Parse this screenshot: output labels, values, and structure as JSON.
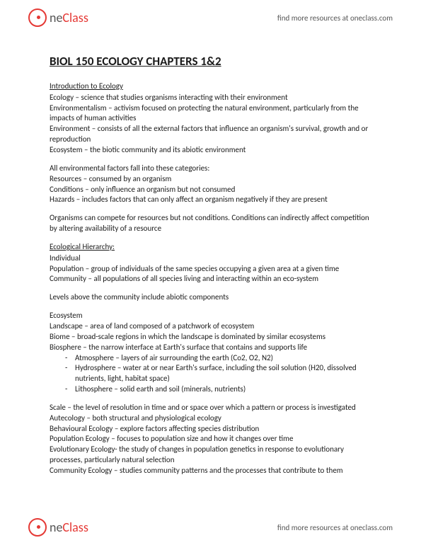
{
  "brand": {
    "logo_part1": "ne",
    "logo_part2": "Class",
    "header_link": "find more resources at oneclass.com",
    "footer_link": "find more resources at oneclass.com"
  },
  "doc": {
    "title": "BIOL 150 ECOLOGY CHAPTERS 1&2",
    "sections": [
      {
        "heading": "Introduction to Ecology",
        "lines": [
          "Ecology – science that studies organisms interacting with their environment",
          "Environmentalism – activism focused on protecting the natural environment, particularly from the impacts of human activities",
          "Environment – consists of all the external factors that influence an organism's survival, growth and or reproduction",
          "Ecosystem – the biotic community and its abiotic environment"
        ]
      },
      {
        "heading": "",
        "lines": [
          "All environmental factors fall into these categories:",
          "Resources – consumed by an organism",
          "Conditions – only influence an organism but not consumed",
          "Hazards – includes factors that can only affect an organism negatively if they are present"
        ]
      },
      {
        "heading": "",
        "lines": [
          "Organisms can compete for resources but not conditions. Conditions can indirectly affect competition by altering availability of a resource"
        ]
      },
      {
        "heading": "Ecological Hierarchy:",
        "lines": [
          "Individual",
          "Population – group of individuals of the same species occupying a given area at a given time",
          "Community – all populations of all species living and interacting within an eco-system"
        ]
      },
      {
        "heading": "",
        "lines": [
          "Levels above the community include abiotic components"
        ]
      },
      {
        "heading": "",
        "lines": [
          "Ecosystem",
          "Landscape – area of land composed of a patchwork of ecosystem",
          "Biome – broad-scale regions in which the landscape is dominated by similar ecosystems",
          "Biosphere – the narrow interface at Earth's surface that contains and supports life"
        ],
        "sublist": [
          "Atmosphere – layers of air surrounding the earth (Co2, O2, N2)",
          "Hydrosphere – water at or near Earth's surface, including the soil solution (H20, dissolved nutrients, light, habitat space)",
          "Lithosphere – solid earth and soil (minerals, nutrients)"
        ]
      },
      {
        "heading": "",
        "lines": [
          "Scale – the level of resolution in time and or space over which a pattern or process is investigated",
          "Autecology – both structural and physiological ecology",
          "Behavioural Ecology – explore factors affecting species distribution",
          "Population Ecology – focuses to population size and how it changes over time",
          "Evolutionary Ecology- the study of changes in population genetics in response to evolutionary processes, particularly natural selection",
          "Community Ecology – studies community patterns and the processes that contribute to them"
        ]
      }
    ]
  },
  "style": {
    "page_bg": "#ffffff",
    "text_color": "#1a1a1a",
    "accent_color": "#e53935",
    "muted_color": "#555555",
    "body_fontsize": 11,
    "title_fontsize": 17,
    "logo_fontsize": 18,
    "link_fontsize": 11,
    "line_height": 1.35
  }
}
